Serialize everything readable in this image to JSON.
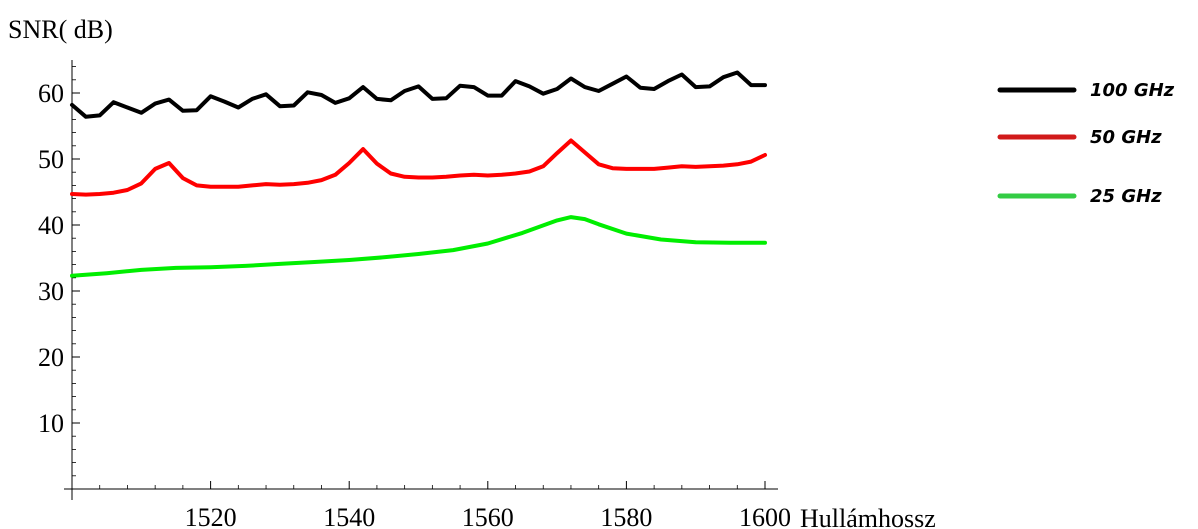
{
  "chart_data": {
    "type": "line",
    "ylabel": "SNR( dB)",
    "xlabel": "Hullámhossz",
    "xlim": [
      1500,
      1600
    ],
    "ylim": [
      0,
      65
    ],
    "x_ticks": [
      1520,
      1540,
      1560,
      1580,
      1600
    ],
    "y_ticks": [
      10,
      20,
      30,
      40,
      50,
      60
    ],
    "grid": false,
    "legend_position": "right",
    "series": [
      {
        "name": "100 GHz",
        "color": "#000000",
        "x": [
          1500,
          1502,
          1504,
          1506,
          1508,
          1510,
          1512,
          1514,
          1516,
          1518,
          1520,
          1522,
          1524,
          1526,
          1528,
          1530,
          1532,
          1534,
          1536,
          1538,
          1540,
          1542,
          1544,
          1546,
          1548,
          1550,
          1552,
          1554,
          1556,
          1558,
          1560,
          1562,
          1564,
          1566,
          1568,
          1570,
          1572,
          1574,
          1576,
          1578,
          1580,
          1582,
          1584,
          1586,
          1588,
          1590,
          1592,
          1594,
          1596,
          1598,
          1600
        ],
        "y": [
          58.2,
          56.4,
          56.6,
          58.6,
          57.8,
          57.0,
          58.4,
          59.0,
          57.3,
          57.4,
          59.5,
          58.7,
          57.8,
          59.1,
          59.8,
          58.0,
          58.1,
          60.1,
          59.7,
          58.5,
          59.2,
          60.9,
          59.1,
          58.9,
          60.3,
          61.0,
          59.1,
          59.2,
          61.1,
          60.9,
          59.6,
          59.6,
          61.8,
          61.0,
          59.9,
          60.6,
          62.2,
          60.9,
          60.3,
          61.4,
          62.5,
          60.8,
          60.6,
          61.8,
          62.8,
          60.9,
          61.0,
          62.4,
          63.1,
          61.2,
          61.2
        ]
      },
      {
        "name": "50 GHz",
        "color": "#ff0000",
        "x": [
          1500,
          1502,
          1504,
          1506,
          1508,
          1510,
          1512,
          1514,
          1516,
          1518,
          1520,
          1522,
          1524,
          1526,
          1528,
          1530,
          1532,
          1534,
          1536,
          1538,
          1540,
          1542,
          1544,
          1546,
          1548,
          1550,
          1552,
          1554,
          1556,
          1558,
          1560,
          1562,
          1564,
          1566,
          1568,
          1570,
          1572,
          1574,
          1576,
          1578,
          1580,
          1582,
          1584,
          1586,
          1588,
          1590,
          1592,
          1594,
          1596,
          1598,
          1600
        ],
        "y": [
          44.7,
          44.6,
          44.7,
          44.9,
          45.3,
          46.3,
          48.5,
          49.4,
          47.1,
          46.0,
          45.8,
          45.8,
          45.8,
          46.0,
          46.2,
          46.1,
          46.2,
          46.4,
          46.8,
          47.6,
          49.4,
          51.5,
          49.3,
          47.8,
          47.3,
          47.2,
          47.2,
          47.3,
          47.5,
          47.6,
          47.5,
          47.6,
          47.8,
          48.1,
          48.9,
          50.9,
          52.8,
          51.0,
          49.2,
          48.6,
          48.5,
          48.5,
          48.5,
          48.7,
          48.9,
          48.8,
          48.9,
          49.0,
          49.2,
          49.6,
          50.6
        ]
      },
      {
        "name": "25 GHz",
        "color": "#00ee00",
        "x": [
          1500,
          1505,
          1510,
          1515,
          1520,
          1525,
          1530,
          1535,
          1540,
          1545,
          1550,
          1555,
          1560,
          1565,
          1570,
          1572,
          1574,
          1576,
          1580,
          1585,
          1590,
          1595,
          1600
        ],
        "y": [
          32.3,
          32.7,
          33.2,
          33.5,
          33.6,
          33.8,
          34.1,
          34.4,
          34.7,
          35.1,
          35.6,
          36.2,
          37.2,
          38.8,
          40.7,
          41.2,
          40.9,
          40.1,
          38.7,
          37.8,
          37.4,
          37.3,
          37.3
        ]
      }
    ]
  }
}
